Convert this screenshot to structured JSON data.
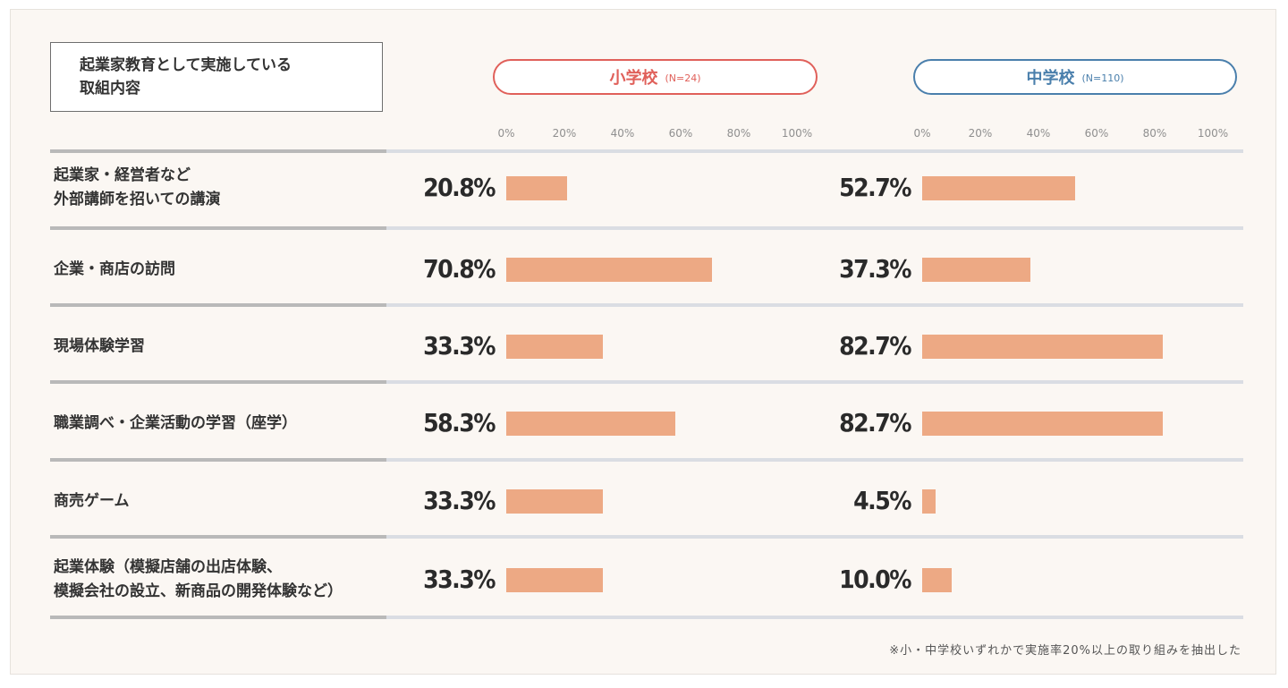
{
  "header": {
    "line1": "起業家教育として実施している",
    "line2": "取組内容"
  },
  "footnote": "※小・中学校いずれかで実施率20%以上の取り組みを抽出した",
  "colors": {
    "bar": "#eda984",
    "elementary": "#e0605a",
    "junior_high": "#4a7fac"
  },
  "chart_data": {
    "type": "bar",
    "orientation": "horizontal",
    "xlim": [
      0,
      100
    ],
    "tick_labels": [
      "0%",
      "20%",
      "40%",
      "60%",
      "80%",
      "100%"
    ],
    "categories": [
      {
        "lines": [
          "起業家・経営者など",
          "外部講師を招いての講演"
        ]
      },
      {
        "lines": [
          "企業・商店の訪問"
        ]
      },
      {
        "lines": [
          "現場体験学習"
        ]
      },
      {
        "lines": [
          "職業調べ・企業活動の学習（座学）"
        ]
      },
      {
        "lines": [
          "商売ゲーム"
        ]
      },
      {
        "lines": [
          "起業体験（模擬店舗の出店体験、",
          "模擬会社の設立、新商品の開発体験など）"
        ]
      }
    ],
    "series": [
      {
        "name": "小学校",
        "n_label": "(N=24)",
        "values": [
          20.8,
          70.8,
          33.3,
          58.3,
          33.3,
          33.3
        ],
        "value_labels": [
          "20.8%",
          "70.8%",
          "33.3%",
          "58.3%",
          "33.3%",
          "33.3%"
        ]
      },
      {
        "name": "中学校",
        "n_label": "(N=110)",
        "values": [
          52.7,
          37.3,
          82.7,
          82.7,
          4.5,
          10.0
        ],
        "value_labels": [
          "52.7%",
          "37.3%",
          "82.7%",
          "82.7%",
          "4.5%",
          "10.0%"
        ]
      }
    ]
  }
}
